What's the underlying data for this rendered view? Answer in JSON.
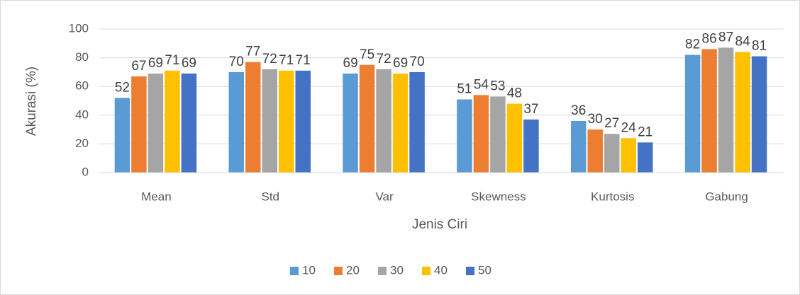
{
  "chart_data": {
    "type": "bar",
    "x_label": "Jenis Ciri",
    "y_label": "Akurasi (%)",
    "categories": [
      "Mean",
      "Std",
      "Var",
      "Skewness",
      "Kurtosis",
      "Gabung"
    ],
    "series": [
      {
        "name": "10",
        "color": "#5b9bd5",
        "values": [
          52,
          70,
          69,
          51,
          36,
          82
        ]
      },
      {
        "name": "20",
        "color": "#ed7d31",
        "values": [
          67,
          77,
          75,
          54,
          30,
          86
        ]
      },
      {
        "name": "30",
        "color": "#a5a5a5",
        "values": [
          69,
          72,
          72,
          53,
          27,
          87
        ]
      },
      {
        "name": "40",
        "color": "#ffc000",
        "values": [
          71,
          71,
          69,
          48,
          24,
          84
        ]
      },
      {
        "name": "50",
        "color": "#4472c4",
        "values": [
          69,
          71,
          70,
          37,
          21,
          81
        ]
      }
    ],
    "ylim": [
      0,
      100
    ],
    "yticks": [
      0,
      20,
      40,
      60,
      80,
      100
    ],
    "grid": true,
    "legend": "bottom"
  }
}
